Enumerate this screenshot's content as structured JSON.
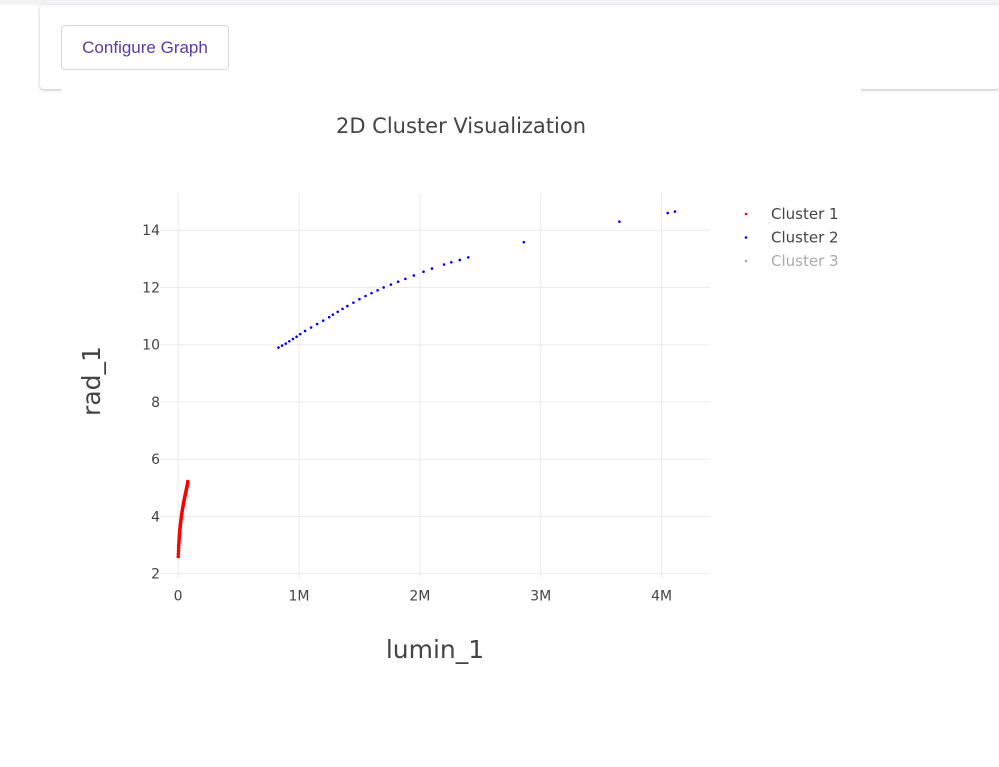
{
  "toolbar": {
    "configure_label": "Configure Graph"
  },
  "chart_data": {
    "type": "scatter",
    "title": "2D Cluster Visualization",
    "xlabel": "lumin_1",
    "ylabel": "rad_1",
    "xlim": [
      -150000,
      4400000
    ],
    "ylim": [
      1.85,
      15.3
    ],
    "x_ticks": [
      0,
      1000000,
      2000000,
      3000000,
      4000000
    ],
    "x_tick_labels": [
      "0",
      "1M",
      "2M",
      "3M",
      "4M"
    ],
    "y_ticks": [
      2,
      4,
      6,
      8,
      10,
      12,
      14
    ],
    "y_tick_labels": [
      "2",
      "4",
      "6",
      "8",
      "10",
      "12",
      "14"
    ],
    "grid": true,
    "legend_position": "top-right",
    "series": [
      {
        "name": "Cluster 1",
        "color": "#ff0000",
        "legend_dim": false,
        "x": [
          1000,
          2000,
          3000,
          4000,
          5000,
          6000,
          7000,
          8000,
          9000,
          10000,
          11000,
          12000,
          13000,
          14000,
          15000,
          16000,
          17000,
          18000,
          19000,
          20000,
          22000,
          24000,
          26000,
          28000,
          30000,
          32000,
          34000,
          36000,
          38000,
          40000,
          42000,
          44000,
          46000,
          48000,
          50000,
          52000,
          54000,
          56000,
          58000,
          60000,
          62000,
          64000,
          66000,
          68000,
          70000,
          72000,
          74000,
          76000,
          78000,
          80000
        ],
        "y": [
          2.6,
          2.7,
          2.8,
          2.9,
          2.98,
          3.05,
          3.12,
          3.18,
          3.24,
          3.3,
          3.35,
          3.4,
          3.45,
          3.5,
          3.55,
          3.6,
          3.64,
          3.68,
          3.72,
          3.76,
          3.83,
          3.9,
          3.97,
          4.03,
          4.09,
          4.15,
          4.2,
          4.25,
          4.3,
          4.35,
          4.4,
          4.45,
          4.5,
          4.54,
          4.58,
          4.62,
          4.66,
          4.7,
          4.74,
          4.78,
          4.82,
          4.86,
          4.9,
          4.94,
          4.98,
          5.02,
          5.06,
          5.1,
          5.15,
          5.22
        ]
      },
      {
        "name": "Cluster 2",
        "color": "#0000ff",
        "legend_dim": false,
        "x": [
          830000,
          860000,
          890000,
          920000,
          950000,
          980000,
          1010000,
          1050000,
          1100000,
          1150000,
          1200000,
          1250000,
          1280000,
          1320000,
          1360000,
          1400000,
          1450000,
          1500000,
          1550000,
          1600000,
          1650000,
          1700000,
          1760000,
          1820000,
          1880000,
          1950000,
          2030000,
          2100000,
          2200000,
          2260000,
          2330000,
          2400000,
          2860000,
          3650000,
          4050000,
          4110000
        ],
        "y": [
          9.9,
          9.97,
          10.04,
          10.12,
          10.2,
          10.28,
          10.37,
          10.48,
          10.6,
          10.72,
          10.84,
          10.96,
          11.05,
          11.15,
          11.25,
          11.35,
          11.47,
          11.59,
          11.7,
          11.8,
          11.9,
          12.0,
          12.1,
          12.2,
          12.3,
          12.42,
          12.55,
          12.66,
          12.8,
          12.88,
          12.96,
          13.05,
          13.58,
          14.3,
          14.6,
          14.65
        ]
      },
      {
        "name": "Cluster 3",
        "color": "#a6a6a6",
        "legend_dim": true,
        "x": [],
        "y": []
      }
    ]
  }
}
